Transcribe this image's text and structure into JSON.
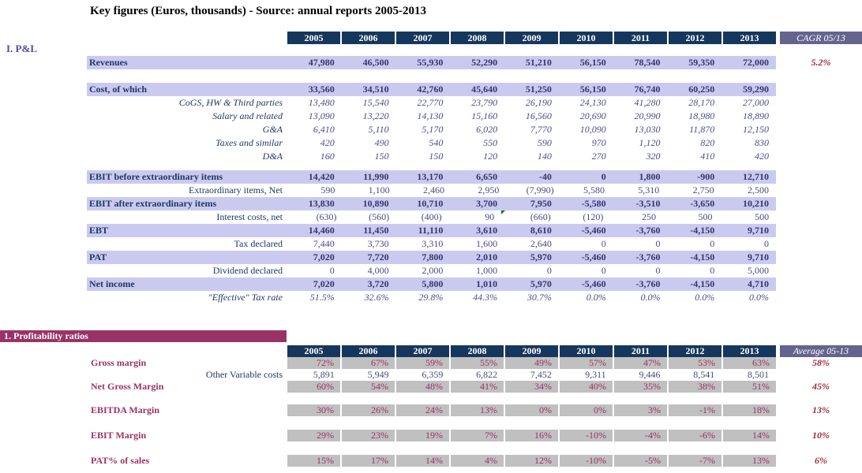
{
  "title": "Key figures (Euros, thousands) - Source: annual reports 2005-2013",
  "years": [
    "2005",
    "2006",
    "2007",
    "2008",
    "2009",
    "2010",
    "2011",
    "2012",
    "2013"
  ],
  "pnl": {
    "section_label": "I. P&L",
    "cagr_header": "CAGR 05/13",
    "rows": [
      {
        "label": "Revenues",
        "type": "band",
        "values": [
          "47,980",
          "46,500",
          "55,930",
          "52,290",
          "51,210",
          "56,150",
          "78,540",
          "59,350",
          "72,000"
        ],
        "extra": "5.2%"
      },
      {
        "label": "Cost, of which",
        "type": "band",
        "values": [
          "33,560",
          "34,510",
          "42,760",
          "45,640",
          "51,250",
          "56,150",
          "76,740",
          "60,250",
          "59,290"
        ]
      },
      {
        "label": "CoGS, HW & Third parties",
        "type": "detail_italic",
        "values": [
          "13,480",
          "15,540",
          "22,770",
          "23,790",
          "26,190",
          "24,130",
          "41,280",
          "28,170",
          "27,000"
        ]
      },
      {
        "label": "Salary and related",
        "type": "detail_italic",
        "values": [
          "13,090",
          "13,220",
          "14,130",
          "15,160",
          "16,560",
          "20,690",
          "20,990",
          "18,980",
          "18,890"
        ]
      },
      {
        "label": "G&A",
        "type": "detail_italic",
        "values": [
          "6,410",
          "5,110",
          "5,170",
          "6,020",
          "7,770",
          "10,090",
          "13,030",
          "11,870",
          "12,150"
        ]
      },
      {
        "label": "Taxes and similar",
        "type": "detail_italic",
        "values": [
          "420",
          "490",
          "540",
          "550",
          "590",
          "970",
          "1,120",
          "820",
          "830"
        ]
      },
      {
        "label": "D&A",
        "type": "detail_italic",
        "values": [
          "160",
          "150",
          "150",
          "120",
          "140",
          "270",
          "320",
          "410",
          "420"
        ]
      },
      {
        "label": "EBIT before extraordinary items",
        "type": "band",
        "values": [
          "14,420",
          "11,990",
          "13,170",
          "6,650",
          "-40",
          "0",
          "1,800",
          "-900",
          "12,710"
        ]
      },
      {
        "label": "Extraordinary items, Net",
        "type": "detail",
        "values": [
          "590",
          "1,100",
          "2,460",
          "2,950",
          "(7,990)",
          "5,580",
          "5,310",
          "2,750",
          "2,500"
        ]
      },
      {
        "label": "EBIT after extraordinary items",
        "type": "band",
        "values": [
          "13,830",
          "10,890",
          "10,710",
          "3,700",
          "7,950",
          "-5,580",
          "-3,510",
          "-3,650",
          "10,210"
        ]
      },
      {
        "label": "Interest costs, net",
        "type": "detail",
        "values": [
          "(630)",
          "(560)",
          "(400)",
          "90",
          "(660)",
          "(120)",
          "250",
          "500",
          "500"
        ],
        "flag_col": 4
      },
      {
        "label": "EBT",
        "type": "band",
        "values": [
          "14,460",
          "11,450",
          "11,110",
          "3,610",
          "8,610",
          "-5,460",
          "-3,760",
          "-4,150",
          "9,710"
        ]
      },
      {
        "label": "Tax declared",
        "type": "detail",
        "values": [
          "7,440",
          "3,730",
          "3,310",
          "1,600",
          "2,640",
          "0",
          "0",
          "0",
          "0"
        ]
      },
      {
        "label": "PAT",
        "type": "band",
        "values": [
          "7,020",
          "7,720",
          "7,800",
          "2,010",
          "5,970",
          "-5,460",
          "-3,760",
          "-4,150",
          "9,710"
        ]
      },
      {
        "label": "Dividend declared",
        "type": "detail",
        "values": [
          "0",
          "4,000",
          "2,000",
          "1,000",
          "0",
          "0",
          "0",
          "0",
          "5,000"
        ]
      },
      {
        "label": "Net income",
        "type": "band",
        "values": [
          "7,020",
          "3,720",
          "5,800",
          "1,010",
          "5,970",
          "-5,460",
          "-3,760",
          "-4,150",
          "4,710"
        ]
      },
      {
        "label": "\"Effective\" Tax rate",
        "type": "detail_italic",
        "values": [
          "51.5%",
          "32.6%",
          "29.8%",
          "44.3%",
          "30.7%",
          "0.0%",
          "0.0%",
          "0.0%",
          "0.0%"
        ]
      }
    ]
  },
  "ratios": {
    "section_label": "1. Profitability ratios",
    "average_header": "Average 05-13",
    "rows": [
      {
        "label": "Gross margin",
        "type": "ratio",
        "values": [
          "72%",
          "67%",
          "59%",
          "55%",
          "49%",
          "57%",
          "47%",
          "53%",
          "63%"
        ],
        "extra": "58%"
      },
      {
        "label": "Other Variable costs",
        "type": "plain",
        "values": [
          "5,891",
          "5,949",
          "6,359",
          "6,822",
          "7,452",
          "9,311",
          "9,446",
          "8,541",
          "8,501"
        ]
      },
      {
        "label": "Net Gross Margin",
        "type": "ratio",
        "values": [
          "60%",
          "54%",
          "48%",
          "41%",
          "34%",
          "40%",
          "35%",
          "38%",
          "51%"
        ],
        "extra": "45%"
      },
      {
        "label": "EBITDA Margin",
        "type": "ratio",
        "values": [
          "30%",
          "26%",
          "24%",
          "13%",
          "0%",
          "0%",
          "3%",
          "-1%",
          "18%"
        ],
        "extra": "13%"
      },
      {
        "label": "EBIT Margin",
        "type": "ratio",
        "values": [
          "29%",
          "23%",
          "19%",
          "7%",
          "16%",
          "-10%",
          "-4%",
          "-6%",
          "14%"
        ],
        "extra": "10%"
      },
      {
        "label": "PAT% of sales",
        "type": "ratio",
        "values": [
          "15%",
          "17%",
          "14%",
          "4%",
          "12%",
          "-10%",
          "-5%",
          "-7%",
          "13%"
        ],
        "extra": "6%"
      }
    ]
  },
  "icons": {
    "error_flag": "green-triangle"
  },
  "colors": {
    "header_navy": "#16375D",
    "band_lavender": "#CACAF1",
    "summary_maroon": "#993366",
    "ratio_cell_gray": "#C0C0C0",
    "accent_red": "#A52A3A",
    "label_navy": "#1F3864",
    "section_label_blue": "#4C4C9E",
    "flag_green": "#0E7A0E"
  }
}
